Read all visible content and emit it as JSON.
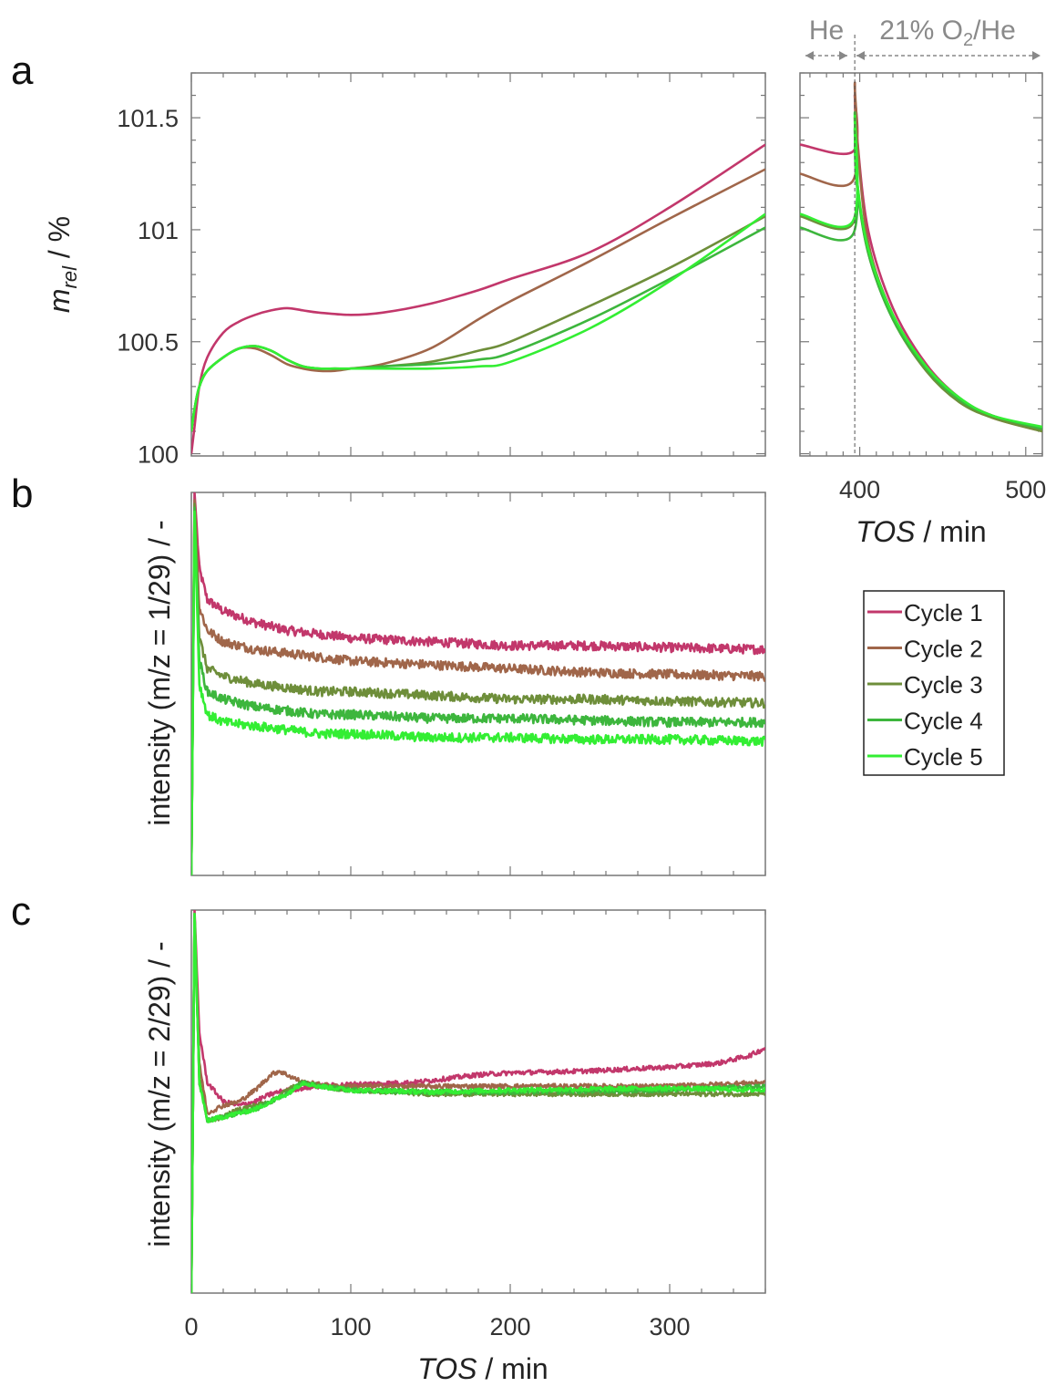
{
  "chart_data": [
    {
      "panel": "a",
      "type": "line",
      "ylabel": "m_rel / %",
      "ylabel_main": "m",
      "ylabel_sub": "rel",
      "ylabel_unit": " / %",
      "xlim": [
        0,
        360
      ],
      "ylim": [
        99.99,
        101.7
      ],
      "yticks": [
        "100",
        "100.5",
        "101",
        "101.5"
      ],
      "ytick_values": [
        100,
        100.5,
        101,
        101.5
      ],
      "series": [
        {
          "name": "Cycle 1",
          "color": "#C2376B",
          "x": [
            0,
            2,
            5,
            10,
            20,
            30,
            40,
            50,
            60,
            70,
            80,
            100,
            120,
            150,
            180,
            200,
            250,
            300,
            360
          ],
          "y": [
            100.0,
            100.12,
            100.3,
            100.43,
            100.54,
            100.59,
            100.62,
            100.64,
            100.65,
            100.64,
            100.63,
            100.62,
            100.63,
            100.67,
            100.73,
            100.78,
            100.9,
            101.1,
            101.38
          ]
        },
        {
          "name": "Cycle 2",
          "color": "#A0664A",
          "x": [
            0,
            2,
            5,
            10,
            20,
            30,
            40,
            50,
            60,
            70,
            80,
            90,
            100,
            120,
            150,
            180,
            200,
            250,
            300,
            360
          ],
          "y": [
            100.1,
            100.2,
            100.3,
            100.37,
            100.43,
            100.47,
            100.47,
            100.44,
            100.4,
            100.38,
            100.37,
            100.37,
            100.38,
            100.4,
            100.47,
            100.6,
            100.68,
            100.86,
            101.05,
            101.27
          ]
        },
        {
          "name": "Cycle 3",
          "color": "#6E8E3A",
          "x": [
            0,
            2,
            5,
            10,
            20,
            30,
            40,
            50,
            60,
            70,
            80,
            90,
            100,
            120,
            150,
            180,
            200,
            250,
            300,
            360
          ],
          "y": [
            100.1,
            100.2,
            100.3,
            100.37,
            100.43,
            100.47,
            100.48,
            100.46,
            100.42,
            100.39,
            100.38,
            100.38,
            100.38,
            100.39,
            100.41,
            100.46,
            100.5,
            100.66,
            100.83,
            101.06
          ]
        },
        {
          "name": "Cycle 4",
          "color": "#3DB63D",
          "x": [
            0,
            2,
            5,
            10,
            20,
            30,
            40,
            50,
            60,
            70,
            80,
            90,
            100,
            120,
            150,
            180,
            200,
            250,
            300,
            360
          ],
          "y": [
            100.1,
            100.2,
            100.3,
            100.37,
            100.43,
            100.47,
            100.48,
            100.46,
            100.42,
            100.39,
            100.38,
            100.38,
            100.38,
            100.39,
            100.4,
            100.42,
            100.45,
            100.6,
            100.78,
            101.01
          ]
        },
        {
          "name": "Cycle 5",
          "color": "#33EE33",
          "x": [
            0,
            2,
            5,
            10,
            20,
            30,
            40,
            50,
            60,
            70,
            80,
            90,
            100,
            120,
            150,
            180,
            200,
            250,
            300,
            360
          ],
          "y": [
            100.1,
            100.2,
            100.3,
            100.37,
            100.43,
            100.47,
            100.48,
            100.46,
            100.42,
            100.39,
            100.38,
            100.38,
            100.38,
            100.38,
            100.38,
            100.39,
            100.41,
            100.56,
            100.77,
            101.07
          ]
        }
      ]
    },
    {
      "panel": "a-inset",
      "type": "line",
      "xlabel": "TOS / min",
      "xlabel_italic": "TOS",
      "xlabel_unit": " / min",
      "xlim": [
        364,
        510
      ],
      "ylim": [
        99.99,
        101.7
      ],
      "xticks": [
        "400",
        "500"
      ],
      "xtick_values": [
        400,
        500
      ],
      "gas_switch_x": 397,
      "gas_he": "He",
      "gas_o2_prefix": "21% O",
      "gas_o2_sub": "2",
      "gas_o2_suffix": "/He",
      "series": [
        {
          "name": "Cycle 1",
          "color": "#C2376B",
          "x": [
            364,
            396,
            397,
            398,
            405,
            420,
            440,
            460,
            480,
            510
          ],
          "y": [
            101.38,
            101.35,
            101.6,
            101.45,
            101.0,
            100.65,
            100.4,
            100.25,
            100.17,
            100.11
          ]
        },
        {
          "name": "Cycle 2",
          "color": "#A0664A",
          "x": [
            364,
            396,
            397,
            398,
            405,
            420,
            440,
            460,
            480,
            510
          ],
          "y": [
            101.25,
            101.22,
            101.65,
            101.45,
            100.95,
            100.62,
            100.38,
            100.24,
            100.16,
            100.1
          ]
        },
        {
          "name": "Cycle 3",
          "color": "#6E8E3A",
          "x": [
            364,
            396,
            397,
            398,
            405,
            420,
            440,
            460,
            480,
            510
          ],
          "y": [
            101.06,
            101.03,
            101.5,
            101.25,
            100.9,
            100.6,
            100.37,
            100.23,
            100.16,
            100.1
          ]
        },
        {
          "name": "Cycle 4",
          "color": "#3DB63D",
          "x": [
            364,
            396,
            397,
            398,
            405,
            420,
            440,
            460,
            480,
            510
          ],
          "y": [
            101.01,
            100.98,
            101.45,
            101.22,
            100.9,
            100.6,
            100.38,
            100.24,
            100.17,
            100.11
          ]
        },
        {
          "name": "Cycle 5",
          "color": "#33EE33",
          "x": [
            364,
            396,
            397,
            398,
            405,
            420,
            440,
            460,
            480,
            510
          ],
          "y": [
            101.07,
            101.04,
            101.52,
            101.25,
            100.92,
            100.62,
            100.39,
            100.25,
            100.17,
            100.12
          ]
        }
      ]
    },
    {
      "panel": "b",
      "type": "line",
      "ylabel": "intensity (m/z = 1/29) / -",
      "xlim": [
        0,
        360
      ],
      "ylim": [
        0,
        1
      ],
      "series": [
        {
          "name": "Cycle 1",
          "color": "#C2376B",
          "noise": 0.012,
          "x": [
            0,
            2,
            5,
            10,
            20,
            40,
            60,
            80,
            100,
            150,
            200,
            250,
            300,
            360
          ],
          "y": [
            0.0,
            1.0,
            0.8,
            0.72,
            0.69,
            0.66,
            0.64,
            0.63,
            0.62,
            0.61,
            0.6,
            0.6,
            0.595,
            0.59
          ]
        },
        {
          "name": "Cycle 2",
          "color": "#A0664A",
          "noise": 0.012,
          "x": [
            0,
            2,
            5,
            10,
            20,
            40,
            60,
            80,
            100,
            150,
            200,
            250,
            300,
            360
          ],
          "y": [
            0.0,
            0.98,
            0.7,
            0.64,
            0.61,
            0.59,
            0.58,
            0.57,
            0.56,
            0.55,
            0.54,
            0.53,
            0.525,
            0.52
          ]
        },
        {
          "name": "Cycle 3",
          "color": "#6E8E3A",
          "noise": 0.012,
          "x": [
            0,
            2,
            5,
            10,
            20,
            40,
            60,
            80,
            100,
            150,
            200,
            250,
            300,
            360
          ],
          "y": [
            0.0,
            0.97,
            0.62,
            0.54,
            0.52,
            0.5,
            0.49,
            0.48,
            0.48,
            0.47,
            0.46,
            0.46,
            0.455,
            0.45
          ]
        },
        {
          "name": "Cycle 4",
          "color": "#3DB63D",
          "noise": 0.012,
          "x": [
            0,
            2,
            5,
            10,
            20,
            40,
            60,
            80,
            100,
            150,
            200,
            250,
            300,
            360
          ],
          "y": [
            0.0,
            0.96,
            0.56,
            0.48,
            0.46,
            0.44,
            0.43,
            0.42,
            0.42,
            0.41,
            0.41,
            0.405,
            0.4,
            0.4
          ]
        },
        {
          "name": "Cycle 5",
          "color": "#33EE33",
          "noise": 0.012,
          "x": [
            0,
            2,
            5,
            10,
            20,
            40,
            60,
            80,
            100,
            150,
            200,
            250,
            300,
            360
          ],
          "y": [
            0.0,
            0.95,
            0.5,
            0.42,
            0.4,
            0.39,
            0.38,
            0.37,
            0.37,
            0.36,
            0.36,
            0.355,
            0.355,
            0.35
          ]
        }
      ]
    },
    {
      "panel": "c",
      "type": "line",
      "ylabel": "intensity (m/z = 2/29) / -",
      "xlabel": "TOS / min",
      "xlabel_italic": "TOS",
      "xlabel_unit": " / min",
      "xlim": [
        0,
        360
      ],
      "ylim": [
        0,
        1
      ],
      "xticks": [
        "0",
        "100",
        "200",
        "300"
      ],
      "xtick_values": [
        0,
        100,
        200,
        300
      ],
      "series": [
        {
          "name": "Cycle 1",
          "color": "#C2376B",
          "noise": 0.006,
          "x": [
            0,
            2,
            5,
            10,
            20,
            30,
            40,
            50,
            60,
            80,
            100,
            140,
            180,
            200,
            250,
            300,
            330,
            350,
            360
          ],
          "y": [
            0.0,
            1.0,
            0.68,
            0.55,
            0.5,
            0.49,
            0.5,
            0.52,
            0.53,
            0.54,
            0.545,
            0.55,
            0.57,
            0.575,
            0.58,
            0.59,
            0.6,
            0.62,
            0.64
          ]
        },
        {
          "name": "Cycle 2",
          "color": "#A0664A",
          "noise": 0.006,
          "x": [
            0,
            2,
            5,
            10,
            20,
            30,
            40,
            50,
            55,
            60,
            70,
            90,
            120,
            200,
            300,
            360
          ],
          "y": [
            0.0,
            0.99,
            0.6,
            0.47,
            0.49,
            0.5,
            0.53,
            0.57,
            0.58,
            0.57,
            0.55,
            0.54,
            0.54,
            0.54,
            0.54,
            0.55
          ]
        },
        {
          "name": "Cycle 3",
          "color": "#6E8E3A",
          "noise": 0.006,
          "x": [
            0,
            2,
            5,
            10,
            20,
            30,
            40,
            50,
            60,
            70,
            80,
            100,
            150,
            200,
            300,
            360
          ],
          "y": [
            0.0,
            0.99,
            0.56,
            0.45,
            0.46,
            0.48,
            0.49,
            0.5,
            0.53,
            0.55,
            0.54,
            0.53,
            0.52,
            0.52,
            0.52,
            0.52
          ]
        },
        {
          "name": "Cycle 4",
          "color": "#3DB63D",
          "noise": 0.006,
          "x": [
            0,
            2,
            5,
            10,
            20,
            30,
            40,
            50,
            60,
            70,
            80,
            100,
            150,
            200,
            300,
            360
          ],
          "y": [
            0.0,
            0.99,
            0.55,
            0.45,
            0.46,
            0.47,
            0.48,
            0.5,
            0.52,
            0.55,
            0.54,
            0.53,
            0.525,
            0.525,
            0.53,
            0.54
          ]
        },
        {
          "name": "Cycle 5",
          "color": "#33EE33",
          "noise": 0.006,
          "x": [
            0,
            2,
            5,
            10,
            20,
            30,
            40,
            50,
            60,
            70,
            80,
            100,
            150,
            200,
            300,
            360
          ],
          "y": [
            0.0,
            0.99,
            0.55,
            0.45,
            0.46,
            0.47,
            0.48,
            0.5,
            0.52,
            0.55,
            0.54,
            0.53,
            0.525,
            0.53,
            0.535,
            0.53
          ]
        }
      ]
    }
  ],
  "panel_labels": {
    "a": "a",
    "b": "b",
    "c": "c"
  },
  "legend": [
    "Cycle 1",
    "Cycle 2",
    "Cycle 3",
    "Cycle 4",
    "Cycle 5"
  ]
}
